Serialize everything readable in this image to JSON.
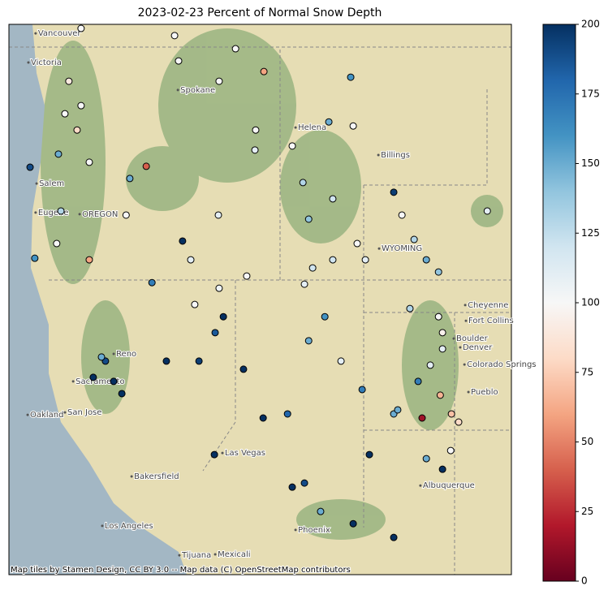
{
  "chart_data": {
    "type": "scatter",
    "title": "2023-02-23 Percent of Normal Snow Depth",
    "xlim": [
      -124.2,
      -104.0
    ],
    "ylim": [
      32.0,
      49.6
    ],
    "colormap": "RdBu",
    "clim": [
      0,
      200
    ],
    "cticks": [
      0,
      25,
      50,
      75,
      100,
      125,
      150,
      175,
      200
    ],
    "x": [
      -123.35,
      -122.21,
      -121.95,
      -121.46,
      -121.3,
      -120.32,
      -119.99,
      -119.66,
      -120.48,
      -118.68,
      -119.34,
      -117.22,
      -116.89,
      -115.75,
      -115.58,
      -115.91,
      -116.56,
      -114.77,
      -113.95,
      -110.46,
      -111.34,
      -110.36,
      -108.73,
      -108.4,
      -107.91,
      -107.42,
      -106.93,
      -104.97,
      -108.08,
      -106.93,
      -106.77,
      -107.26,
      -106.86,
      -107.59,
      -106.41,
      -106.12,
      -106.44,
      -106.77,
      -108.73,
      -110.0,
      -110.85,
      -112.15,
      -111.5,
      -111.99,
      -112.32,
      -112.81,
      -112.32,
      -111.67,
      -110.36,
      -108.73,
      -109.71,
      -115.94,
      -113.98,
      -113.0,
      -114.31,
      -115.78,
      -114.64,
      -117.38,
      -115.75,
      -115.09,
      -120.81,
      -122.11,
      -122.28,
      -123.16,
      -120.97,
      -121.79,
      -121.3,
      -112.81,
      -112.38,
      -111.18,
      -110.2,
      -109.87,
      -111.18,
      -112.15,
      -118.45,
      -117.87,
      -119.49,
      -116.73,
      -106.77,
      -107.75,
      -108.57,
      -107.42,
      -117.54,
      -120.97,
      -114.28
    ],
    "y": [
      45.03,
      45.45,
      46.74,
      46.22,
      47.0,
      38.83,
      38.18,
      37.79,
      38.96,
      45.06,
      44.67,
      42.67,
      42.07,
      41.16,
      40.25,
      39.74,
      38.83,
      38.57,
      48.09,
      47.91,
      46.48,
      46.35,
      44.23,
      43.5,
      42.72,
      42.07,
      41.68,
      43.63,
      40.51,
      40.25,
      39.74,
      38.7,
      37.74,
      37.01,
      37.14,
      36.88,
      35.97,
      35.37,
      37.14,
      37.92,
      38.83,
      39.48,
      40.25,
      41.81,
      41.29,
      34.8,
      34.93,
      34.02,
      33.63,
      33.19,
      35.84,
      35.84,
      37.01,
      37.14,
      45.58,
      43.5,
      41.55,
      48.43,
      47.78,
      48.82,
      38.31,
      43.63,
      42.59,
      42.12,
      42.07,
      47.78,
      49.47,
      45.71,
      44.54,
      44.02,
      42.59,
      42.07,
      42.07,
      43.37,
      41.34,
      38.83,
      43.5,
      40.64,
      39.22,
      38.18,
      37.27,
      35.71,
      49.24,
      45.19,
      46.22
    ],
    "values": [
      190,
      150,
      100,
      80,
      100,
      190,
      200,
      200,
      150,
      40,
      150,
      200,
      110,
      105,
      200,
      185,
      195,
      200,
      60,
      160,
      150,
      100,
      195,
      100,
      130,
      150,
      140,
      110,
      130,
      100,
      95,
      110,
      65,
      15,
      70,
      80,
      100,
      200,
      150,
      170,
      110,
      150,
      160,
      120,
      110,
      200,
      190,
      150,
      200,
      200,
      200,
      200,
      200,
      180,
      110,
      110,
      100,
      100,
      100,
      100,
      200,
      130,
      100,
      160,
      60,
      90,
      100,
      100,
      130,
      120,
      100,
      110,
      120,
      140,
      170,
      200,
      100,
      100,
      110,
      170,
      150,
      150,
      100,
      100,
      100
    ],
    "map_labels": [
      {
        "text": "Vancouver",
        "lon": -123.03,
        "lat": 49.31
      },
      {
        "text": "Victoria",
        "lon": -123.32,
        "lat": 48.38
      },
      {
        "text": "Spokane",
        "lon": -117.31,
        "lat": 47.5
      },
      {
        "text": "Helena",
        "lon": -112.58,
        "lat": 46.3
      },
      {
        "text": "Billings",
        "lon": -109.25,
        "lat": 45.42
      },
      {
        "text": "Salem",
        "lon": -122.99,
        "lat": 44.51
      },
      {
        "text": "Eugene",
        "lon": -123.03,
        "lat": 43.58
      },
      {
        "text": "OREGON",
        "lon": -121.26,
        "lat": 43.53
      },
      {
        "text": "WYOMING",
        "lon": -109.22,
        "lat": 42.43
      },
      {
        "text": "Reno",
        "lon": -119.89,
        "lat": 39.06
      },
      {
        "text": "Sacramento",
        "lon": -121.52,
        "lat": 38.18
      },
      {
        "text": "Oakland",
        "lon": -123.35,
        "lat": 37.11
      },
      {
        "text": "San Jose",
        "lon": -121.85,
        "lat": 37.19
      },
      {
        "text": "Las Vegas",
        "lon": -115.52,
        "lat": 35.89
      },
      {
        "text": "Bakersfield",
        "lon": -119.17,
        "lat": 35.14
      },
      {
        "text": "Los Angeles",
        "lon": -120.35,
        "lat": 33.56
      },
      {
        "text": "Phoenix",
        "lon": -112.58,
        "lat": 33.43
      },
      {
        "text": "Albuquerque",
        "lon": -107.56,
        "lat": 34.85
      },
      {
        "text": "Pueblo",
        "lon": -105.63,
        "lat": 37.84
      },
      {
        "text": "Colorado Springs",
        "lon": -105.79,
        "lat": 38.72
      },
      {
        "text": "Denver",
        "lon": -105.96,
        "lat": 39.27
      },
      {
        "text": "Boulder",
        "lon": -106.22,
        "lat": 39.55
      },
      {
        "text": "Fort Collins",
        "lon": -105.73,
        "lat": 40.12
      },
      {
        "text": "Cheyenne",
        "lon": -105.76,
        "lat": 40.62
      },
      {
        "text": "Tijuana",
        "lon": -117.25,
        "lat": 32.62
      },
      {
        "text": "Mexicali",
        "lon": -115.81,
        "lat": 32.65
      }
    ],
    "attribution": "Map tiles by Stamen Design, CC BY 3.0 -- Map data (C) OpenStreetMap contributors"
  }
}
